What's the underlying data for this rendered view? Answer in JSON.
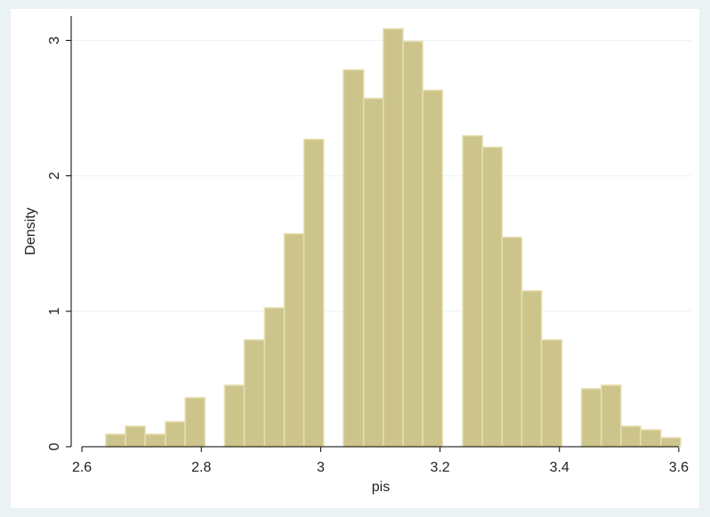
{
  "chart_data": {
    "type": "histogram",
    "x_label": "pis",
    "y_label": "Density",
    "bins": [
      2.64,
      2.673,
      2.706,
      2.74,
      2.773,
      2.806,
      2.839,
      2.872,
      2.906,
      2.939,
      2.972,
      3.005,
      3.038,
      3.072,
      3.105,
      3.138,
      3.171,
      3.204,
      3.238,
      3.271,
      3.304,
      3.337,
      3.37,
      3.404,
      3.437,
      3.47,
      3.503,
      3.536,
      3.57,
      3.603
    ],
    "values": [
      0.092,
      0.151,
      0.092,
      0.184,
      0.362,
      0,
      0.454,
      0.789,
      1.026,
      1.572,
      2.27,
      0,
      2.783,
      2.572,
      3.086,
      2.993,
      2.632,
      0,
      2.296,
      2.211,
      1.546,
      1.151,
      0.789,
      0,
      0.428,
      0.454,
      0.151,
      0.125,
      0.066
    ],
    "color": "#cdc48b",
    "edge_color": "#e6dfb0",
    "xlim": [
      2.582,
      3.621
    ],
    "xticks": [
      2.6,
      2.8,
      3,
      3.2,
      3.4,
      3.6
    ],
    "ylim": [
      0,
      3.18
    ],
    "yticks": [
      0,
      1,
      2,
      3
    ],
    "grid": true
  }
}
